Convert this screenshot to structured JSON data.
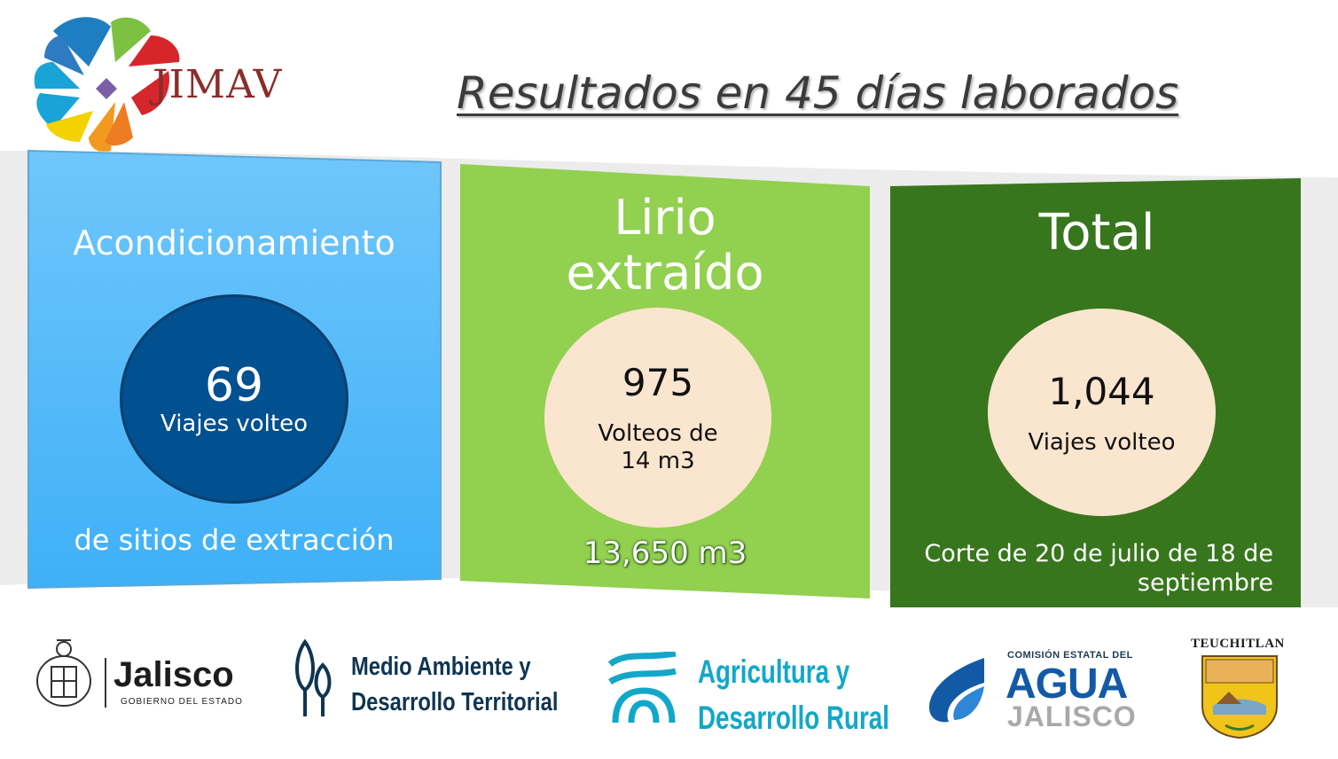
{
  "header": {
    "logo_text": "JIMAV",
    "title": "Resultados en 45 días laborados"
  },
  "panels": [
    {
      "title": "Acondicionamiento",
      "value": "69",
      "label": "Viajes volteo",
      "footer": "de sitios de extracción",
      "color": "#5ec0fa",
      "circle_color": "#01508f"
    },
    {
      "title_line1": "Lirio",
      "title_line2": "extraído",
      "value": "975",
      "label_line1": "Volteos de",
      "label_line2": "14 m3",
      "footer": "13,650 m3",
      "color": "#92d050",
      "circle_color": "#fae5cf"
    },
    {
      "title": "Total",
      "value": "1,044",
      "label": "Viajes volteo",
      "footer_line1": "Corte de 20 de julio de 18 de",
      "footer_line2": "septiembre",
      "color": "#38761d",
      "circle_color": "#fae5cf"
    }
  ],
  "footer_logos": {
    "jalisco": {
      "name": "Jalisco",
      "sub": "GOBIERNO DEL ESTADO"
    },
    "medio_ambiente": {
      "line1": "Medio Ambiente y",
      "line2": "Desarrollo Territorial"
    },
    "agricultura": {
      "line1": "Agricultura y",
      "line2": "Desarrollo Rural"
    },
    "cea": {
      "sub": "COMISIÓN ESTATAL DEL",
      "agua": "AGUA",
      "jalisco": "JALISCO"
    },
    "teuchitlan": {
      "name": "TEUCHITLAN"
    }
  }
}
